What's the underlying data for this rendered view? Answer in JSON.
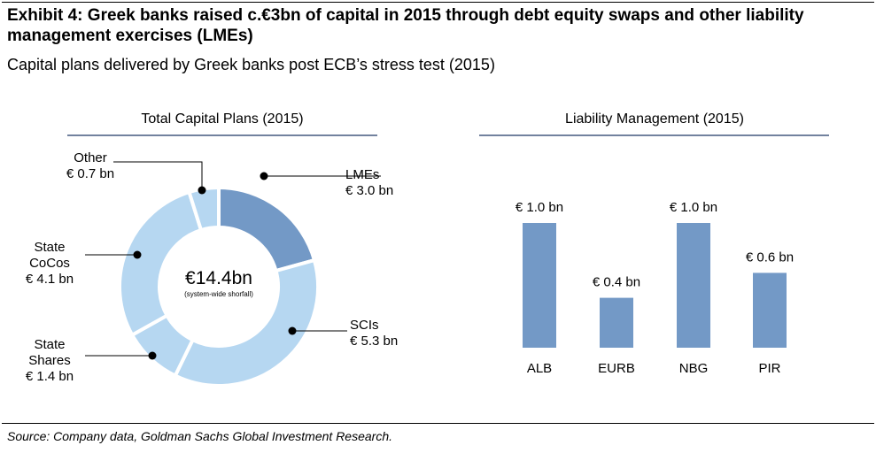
{
  "exhibit": {
    "title": "Exhibit 4: Greek banks raised c.€3bn of capital in 2015 through debt equity swaps and other liability management exercises (LMEs)",
    "subtitle": "Capital plans delivered by Greek banks post ECB’s stress test (2015)",
    "source": "Source: Company data, Goldman Sachs Global Investment Research."
  },
  "colors": {
    "dark_blue": "#7399c6",
    "light_blue": "#b6d7f1",
    "title_rule": "#1f3864"
  },
  "chart_data": [
    {
      "type": "pie",
      "variant": "donut",
      "title": "Total Capital Plans (2015)",
      "center_value": "€14.4bn",
      "center_note": "(system-wide shorfall)",
      "unit": "€ bn",
      "slices": [
        {
          "name": "LMEs",
          "label_lines": [
            "LMEs",
            "€ 3.0 bn"
          ],
          "value": 3.0,
          "color": "#7399c6",
          "label_side": "right"
        },
        {
          "name": "SCIs",
          "label_lines": [
            "SCIs",
            "€ 5.3 bn"
          ],
          "value": 5.3,
          "color": "#b6d7f1",
          "label_side": "right"
        },
        {
          "name": "State Shares",
          "label_lines": [
            "State",
            "Shares",
            "€ 1.4 bn"
          ],
          "value": 1.4,
          "color": "#b6d7f1",
          "label_side": "left"
        },
        {
          "name": "State CoCos",
          "label_lines": [
            "State",
            "CoCos",
            "€ 4.1 bn"
          ],
          "value": 4.1,
          "color": "#b6d7f1",
          "label_side": "left"
        },
        {
          "name": "Other",
          "label_lines": [
            "Other",
            "€ 0.7 bn"
          ],
          "value": 0.7,
          "color": "#b6d7f1",
          "label_side": "left"
        }
      ]
    },
    {
      "type": "bar",
      "title": "Liability Management (2015)",
      "categories": [
        "ALB",
        "EURB",
        "NBG",
        "PIR"
      ],
      "values": [
        1.0,
        0.4,
        1.0,
        0.6
      ],
      "value_labels": [
        "€ 1.0 bn",
        "€ 0.4 bn",
        "€ 1.0 bn",
        "€ 0.6 bn"
      ],
      "ylim": [
        0,
        1.0
      ],
      "color": "#7399c6",
      "xlabel": "",
      "ylabel": ""
    }
  ]
}
